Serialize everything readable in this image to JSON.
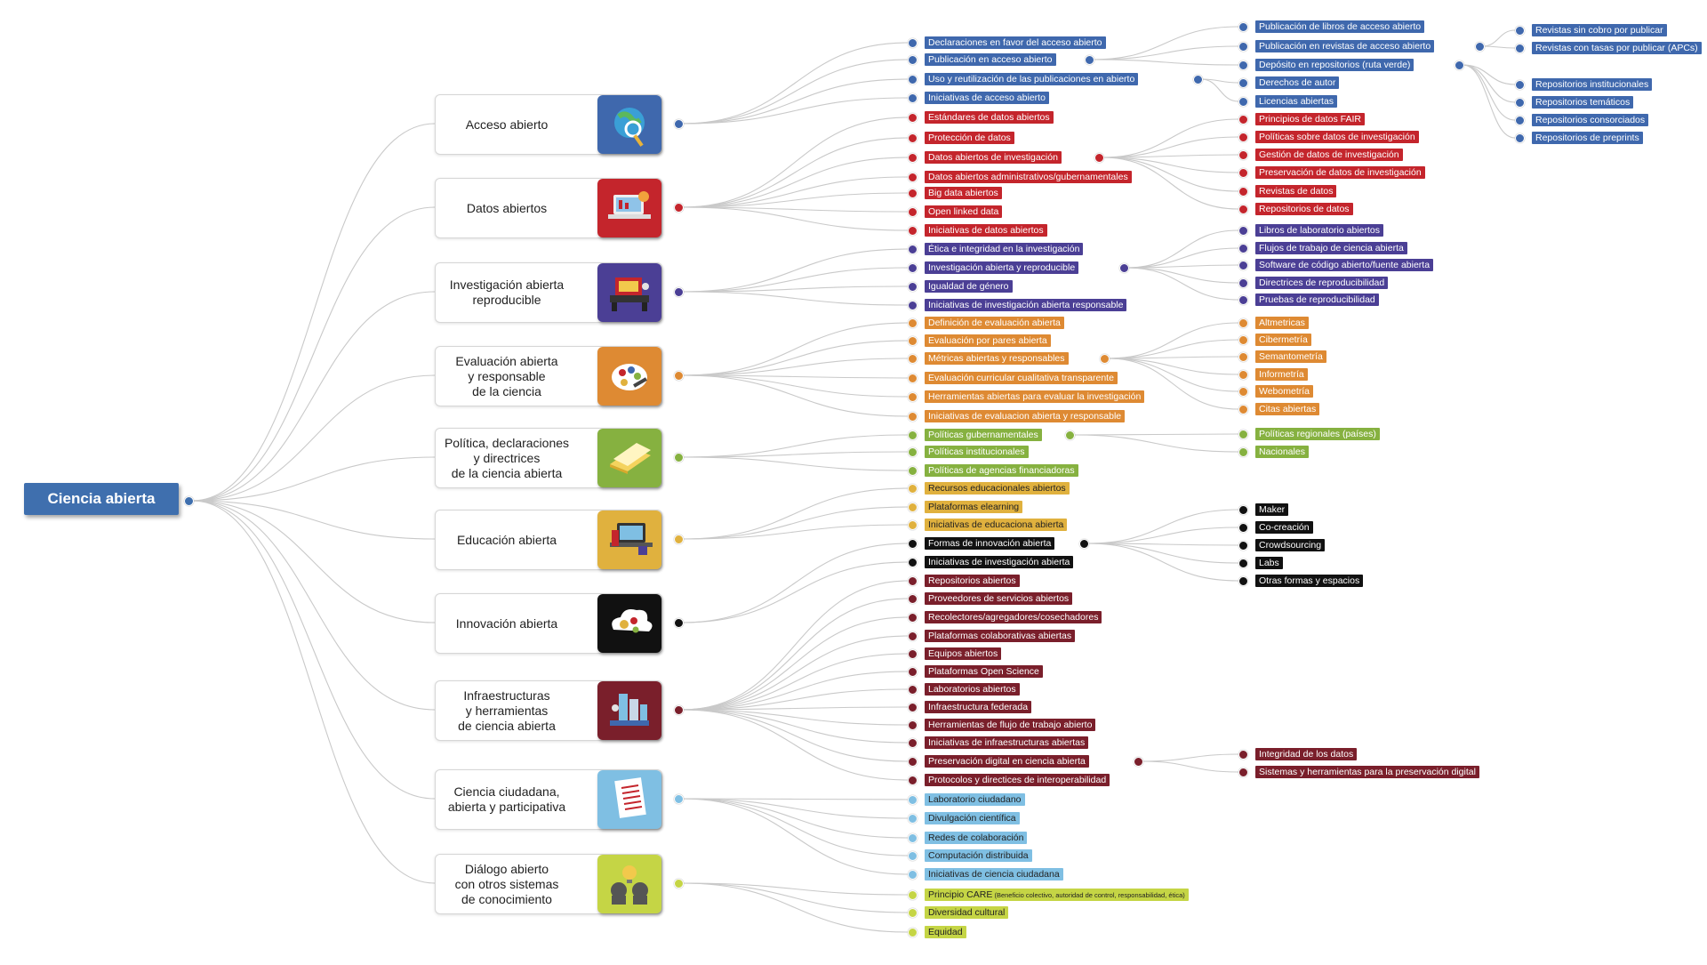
{
  "root": {
    "label": "Ciencia abierta",
    "color": "#3f6fae"
  },
  "categories": [
    {
      "label": "Acceso abierto",
      "color": "#3f68ad",
      "icon": "globe-magnifier-icon",
      "items": [
        {
          "label": "Declaraciones en favor del acceso abierto"
        },
        {
          "label": "Publicación en acceso abierto",
          "children": [
            {
              "label": "Publicación de libros de acceso abierto"
            },
            {
              "label": "Publicación en revistas de acceso abierto",
              "children": [
                {
                  "label": "Revistas sin cobro por publicar"
                },
                {
                  "label": "Revistas con tasas por publicar (APCs)"
                }
              ]
            },
            {
              "label": "Depósito en repositorios (ruta verde)",
              "children": [
                {
                  "label": "Repositorios institucionales"
                },
                {
                  "label": "Repositorios temáticos"
                },
                {
                  "label": "Repositorios consorciados"
                },
                {
                  "label": "Repositorios de preprints"
                }
              ]
            }
          ]
        },
        {
          "label": "Uso y reutilización de las publicaciones en abierto",
          "children": [
            {
              "label": "Derechos de autor"
            },
            {
              "label": "Licencias abiertas"
            }
          ]
        },
        {
          "label": "Iniciativas de acceso abierto"
        }
      ]
    },
    {
      "label": "Datos abiertos",
      "color": "#c4252c",
      "icon": "laptop-data-icon",
      "items": [
        {
          "label": "Estándares de datos abiertos"
        },
        {
          "label": "Protección de datos"
        },
        {
          "label": "Datos abiertos de investigación",
          "children": [
            {
              "label": "Principios de datos FAIR"
            },
            {
              "label": "Políticas sobre datos de investigación"
            },
            {
              "label": "Gestión de datos de investigación"
            },
            {
              "label": "Preservación de datos de investigación"
            },
            {
              "label": "Revistas de datos"
            },
            {
              "label": "Repositorios de datos"
            }
          ]
        },
        {
          "label": "Datos abiertos administrativos/gubernamentales"
        },
        {
          "label": "Big data abiertos"
        },
        {
          "label": "Open linked data"
        },
        {
          "label": "Iniciativas de datos abiertos"
        }
      ]
    },
    {
      "label": "Investigación abierta\nreproducible",
      "color": "#4b3f95",
      "icon": "lab-workbench-icon",
      "items": [
        {
          "label": "Ética e integridad en la investigación"
        },
        {
          "label": "Investigación abierta y reproducible",
          "children": [
            {
              "label": "Libros de laboratorio abiertos"
            },
            {
              "label": "Flujos de trabajo de ciencia abierta"
            },
            {
              "label": "Software de código abierto/fuente abierta"
            },
            {
              "label": "Directrices de reproducibilidad"
            },
            {
              "label": "Pruebas de reproducibilidad"
            }
          ]
        },
        {
          "label": "Igualdad de género"
        },
        {
          "label": "Iniciativas de investigación abierta responsable"
        }
      ]
    },
    {
      "label": "Evaluación abierta\ny responsable\nde la ciencia",
      "color": "#de8a33",
      "icon": "evaluation-palette-icon",
      "items": [
        {
          "label": "Definición de evaluación abierta"
        },
        {
          "label": "Evaluación por pares abierta"
        },
        {
          "label": "Métricas abiertas y responsables",
          "children": [
            {
              "label": "Altmetricas"
            },
            {
              "label": "Cibermetría"
            },
            {
              "label": "Semantometría"
            },
            {
              "label": "Informetría"
            },
            {
              "label": "Webometría"
            },
            {
              "label": "Citas abiertas"
            }
          ]
        },
        {
          "label": "Evaluación curricular cualitativa transparente"
        },
        {
          "label": "Herramientas abiertas para evaluar la investigación"
        },
        {
          "label": "Iniciativas de evaluacion abierta y responsable"
        }
      ]
    },
    {
      "label": "Política, declaraciones\ny directrices\nde la ciencia abierta",
      "color": "#86b140",
      "icon": "documents-icon",
      "items": [
        {
          "label": "Políticas gubernamentales",
          "children": [
            {
              "label": "Políticas regionales (países)"
            },
            {
              "label": "Nacionales"
            }
          ]
        },
        {
          "label": "Políticas institucionales"
        },
        {
          "label": "Políticas de agencias financiadoras"
        }
      ]
    },
    {
      "label": "Educación abierta",
      "color": "#e0b13e",
      "icon": "elearning-laptop-icon",
      "items": [
        {
          "label": "Recursos educacionales abiertos"
        },
        {
          "label": "Plataformas elearning"
        },
        {
          "label": "Iniciativas de educaciona abierta"
        }
      ]
    },
    {
      "label": "Innovación abierta",
      "color": "#111111",
      "icon": "cloud-gears-icon",
      "items": [
        {
          "label": "Formas de innovación abierta",
          "children": [
            {
              "label": "Maker"
            },
            {
              "label": "Co-creación"
            },
            {
              "label": "Crowdsourcing"
            },
            {
              "label": "Labs"
            },
            {
              "label": "Otras formas y espacios"
            }
          ]
        },
        {
          "label": "Iniciativas de investigación abierta"
        }
      ]
    },
    {
      "label": "Infraestructuras\ny herramientas\nde ciencia abierta",
      "color": "#7a1f2b",
      "icon": "infrastructure-servers-icon",
      "items": [
        {
          "label": "Repositorios abiertos"
        },
        {
          "label": "Proveedores de servicios abiertos"
        },
        {
          "label": "Recolectores/agregadores/cosechadores"
        },
        {
          "label": "Plataformas colaborativas abiertas"
        },
        {
          "label": "Equipos abiertos"
        },
        {
          "label": "Plataformas Open Science"
        },
        {
          "label": "Laboratorios abiertos"
        },
        {
          "label": "Infraestructura federada"
        },
        {
          "label": "Herramientas de flujo de trabajo abierto"
        },
        {
          "label": "Iniciativas de infraestructuras abiertas"
        },
        {
          "label": "Preservación digital en ciencia abierta",
          "children": [
            {
              "label": "Integridad de los datos"
            },
            {
              "label": "Sistemas y herramientas para la preservación digital"
            }
          ]
        },
        {
          "label": "Protocolos y directices de interoperabilidad"
        }
      ]
    },
    {
      "label": "Ciencia ciudadana,\nabierta y participativa",
      "color": "#7fbfe3",
      "icon": "document-list-icon",
      "items": [
        {
          "label": "Laboratorio ciudadano"
        },
        {
          "label": "Divulgación científica"
        },
        {
          "label": "Redes de colaboración"
        },
        {
          "label": "Computación distribuida"
        },
        {
          "label": "Iniciativas de ciencia ciudadana"
        }
      ]
    },
    {
      "label": "Diálogo abierto\ncon otros sistemas\nde conocimiento",
      "color": "#c5d545",
      "icon": "dialogue-heads-icon",
      "items": [
        {
          "label": "Principio CARE",
          "note": "(Beneficio colectivo, autoridad  de control, responsabilidad, ética)"
        },
        {
          "label": "Diversidad cultural"
        },
        {
          "label": "Equidad"
        }
      ]
    }
  ]
}
